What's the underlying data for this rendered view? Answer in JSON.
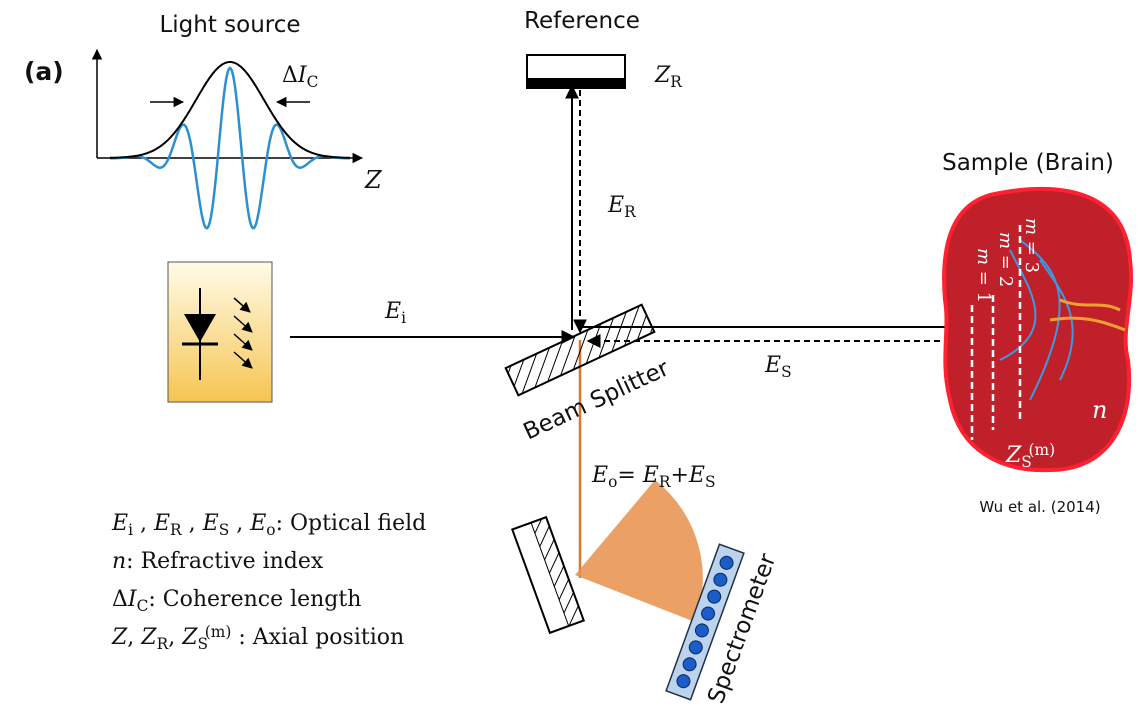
{
  "panel_label": "(a)",
  "labels": {
    "light_source": "Light source",
    "reference": "Reference",
    "sample": "Sample (Brain)",
    "beam_splitter": "Beam Splitter",
    "spectrometer": "Spectrometer",
    "citation": "Wu et al. (2014)"
  },
  "symbols": {
    "delta_ic": [
      {
        "t": "Δ"
      },
      {
        "t": "I",
        "i": true
      },
      {
        "t": "C",
        "sub": true
      }
    ],
    "z": [
      {
        "t": "Z",
        "i": true
      }
    ],
    "z_r": [
      {
        "t": "Z",
        "i": true
      },
      {
        "t": "R",
        "sub": true
      }
    ],
    "e_r": [
      {
        "t": "E",
        "i": true
      },
      {
        "t": "R",
        "sub": true
      }
    ],
    "e_i": [
      {
        "t": "E",
        "i": true
      },
      {
        "t": "i",
        "sub": true
      }
    ],
    "e_s": [
      {
        "t": "E",
        "i": true
      },
      {
        "t": "S",
        "sub": true
      }
    ],
    "e_o": [
      {
        "t": "E",
        "i": true
      },
      {
        "t": "o",
        "sub": true
      },
      {
        "t": "= "
      },
      {
        "t": "E",
        "i": true
      },
      {
        "t": "R",
        "sub": true
      },
      {
        "t": "+"
      },
      {
        "t": "E",
        "i": true
      },
      {
        "t": "S",
        "sub": true
      }
    ],
    "m1": [
      {
        "t": "m",
        "i": true
      },
      {
        "t": " = 1"
      }
    ],
    "m2": [
      {
        "t": "m",
        "i": true
      },
      {
        "t": " = 2"
      }
    ],
    "m3": [
      {
        "t": "m",
        "i": true
      },
      {
        "t": " = 3"
      }
    ],
    "n": [
      {
        "t": "n",
        "i": true
      }
    ],
    "z_s_m": [
      {
        "t": "Z",
        "i": true
      },
      {
        "t": "S",
        "sub": true
      },
      {
        "t": "(m)",
        "sup": true
      }
    ]
  },
  "legend": [
    [
      {
        "t": "E",
        "i": true
      },
      {
        "t": "i",
        "sub": true
      },
      {
        "t": " , "
      },
      {
        "t": "E",
        "i": true
      },
      {
        "t": "R",
        "sub": true
      },
      {
        "t": " , "
      },
      {
        "t": "E",
        "i": true
      },
      {
        "t": "S",
        "sub": true
      },
      {
        "t": " , "
      },
      {
        "t": "E",
        "i": true
      },
      {
        "t": "o",
        "sub": true
      },
      {
        "t": ": Optical field"
      }
    ],
    [
      {
        "t": "n",
        "i": true
      },
      {
        "t": ": Refractive index"
      }
    ],
    [
      {
        "t": "Δ"
      },
      {
        "t": "I",
        "i": true
      },
      {
        "t": "C",
        "sub": true
      },
      {
        "t": ": Coherence length"
      }
    ],
    [
      {
        "t": "Z",
        "i": true
      },
      {
        "t": ", "
      },
      {
        "t": "Z",
        "i": true
      },
      {
        "t": "R",
        "sub": true
      },
      {
        "t": ", "
      },
      {
        "t": "Z",
        "i": true
      },
      {
        "t": "S",
        "sub": true
      },
      {
        "t": "(m)",
        "sup": true
      },
      {
        "t": " : Axial position"
      }
    ]
  ]
}
